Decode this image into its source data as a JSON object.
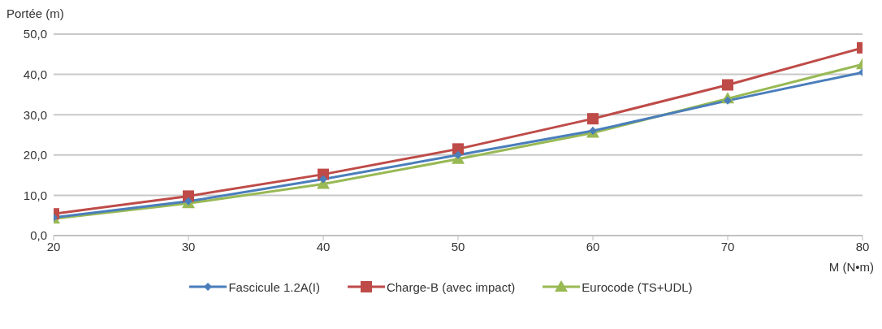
{
  "chart_data": {
    "type": "line",
    "ylabel": "Portée (m)",
    "xlabel": "M (N•m)",
    "x": [
      20,
      30,
      40,
      50,
      60,
      70,
      80
    ],
    "xlim": [
      20,
      80
    ],
    "xticks": [
      20,
      30,
      40,
      50,
      60,
      70,
      80
    ],
    "ylim": [
      0,
      50
    ],
    "yticks": [
      {
        "value": 0,
        "label": "0,0"
      },
      {
        "value": 10,
        "label": "10,0"
      },
      {
        "value": 20,
        "label": "20,0"
      },
      {
        "value": 30,
        "label": "30,0"
      },
      {
        "value": 40,
        "label": "40,0"
      },
      {
        "value": 50,
        "label": "50,0"
      }
    ],
    "grid": "y",
    "legend": "bottom",
    "line_style": "solid",
    "series": [
      {
        "name": "Fascicule 1.2A(I)",
        "color": "#4a7ebb",
        "marker": "diamond",
        "values": [
          4.5,
          8.5,
          14,
          20,
          26,
          33.5,
          40.5
        ]
      },
      {
        "name": "Charge-B (avec impact)",
        "color": "#be4b48",
        "marker": "square",
        "values": [
          5.4,
          9.8,
          15.2,
          21.5,
          29,
          37.4,
          46.6
        ]
      },
      {
        "name": "Eurocode (TS+UDL)",
        "color": "#98b954",
        "marker": "triangle",
        "values": [
          4.2,
          8,
          12.8,
          19,
          25.5,
          34,
          42.5
        ]
      }
    ]
  }
}
